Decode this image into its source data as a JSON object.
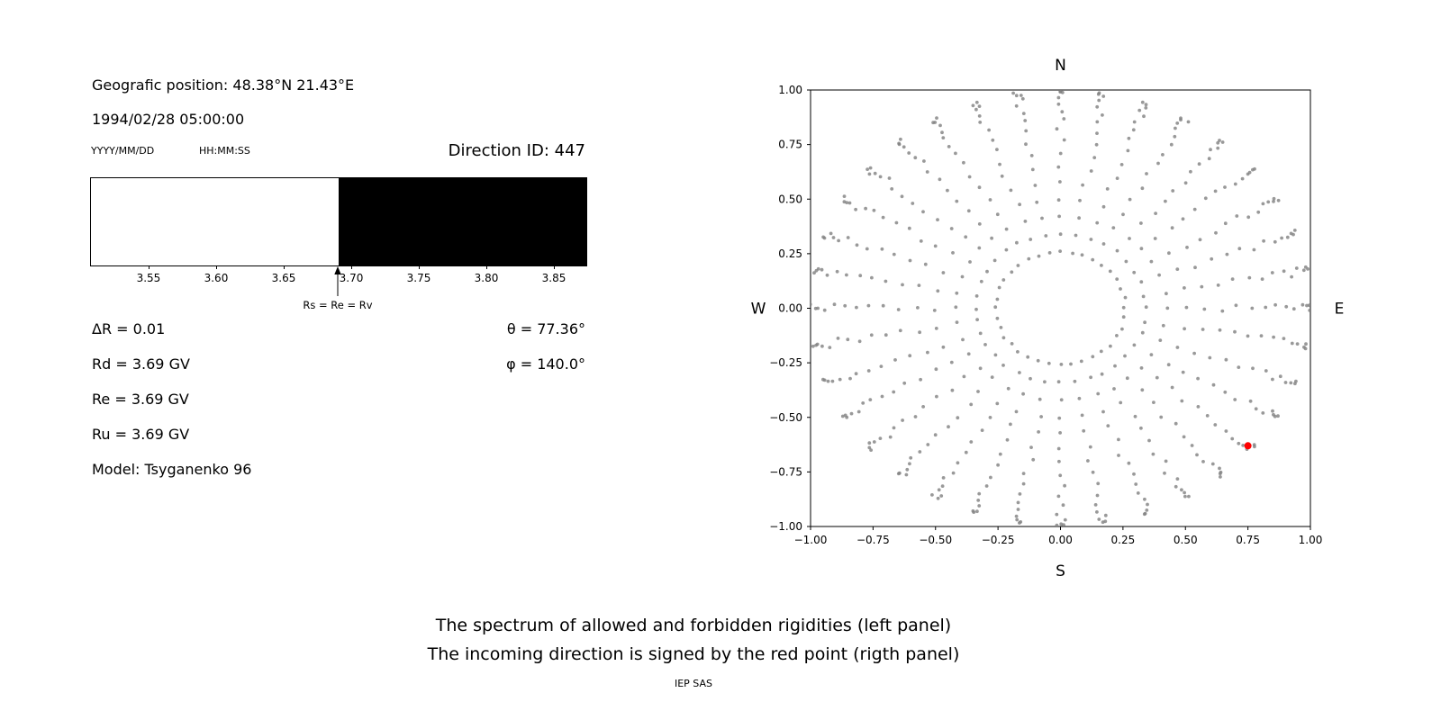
{
  "header": {
    "position": "Geografic position: 48.38°N 21.43°E",
    "datetime": "1994/02/28 05:00:00",
    "date_format": "YYYY/MM/DD",
    "time_format": "HH:MM:SS",
    "direction_id": "Direction ID: 447"
  },
  "parameters": {
    "delta_r": "ΔR = 0.01",
    "rd": "Rd = 3.69 GV",
    "re": "Re = 3.69 GV",
    "ru": "Ru = 3.69 GV",
    "model": "Model: Tsyganenko 96",
    "theta": "θ = 77.36°",
    "phi": "φ = 140.0°"
  },
  "caption": {
    "line1": "The spectrum of allowed and forbidden rigidities (left panel)",
    "line2": "The incoming direction is signed by the red point (rigth panel)",
    "credit": "IEP SAS"
  },
  "chart_data": [
    {
      "name": "rigidity-spectrum",
      "type": "bar",
      "xlim": [
        3.5067,
        3.8733
      ],
      "xtick_values": [
        3.55,
        3.6,
        3.65,
        3.7,
        3.75,
        3.8,
        3.85
      ],
      "xtick_labels": [
        "3.55",
        "3.60",
        "3.65",
        "3.70",
        "3.75",
        "3.80",
        "3.85"
      ],
      "segments": [
        {
          "name": "allowed",
          "from": 3.5067,
          "to": 3.69,
          "color": "#ffffff"
        },
        {
          "name": "forbidden",
          "from": 3.69,
          "to": 3.8733,
          "color": "#000000"
        }
      ],
      "marker": {
        "x": 3.69,
        "label": "Rs = Re = Rv"
      }
    },
    {
      "name": "incoming-direction",
      "type": "scatter",
      "xlim": [
        -1,
        1
      ],
      "ylim": [
        -1,
        1
      ],
      "xtick_values": [
        -1.0,
        -0.75,
        -0.5,
        -0.25,
        0.0,
        0.25,
        0.5,
        0.75,
        1.0
      ],
      "xtick_labels": [
        "−1.00",
        "−0.75",
        "−0.50",
        "−0.25",
        "0.00",
        "0.25",
        "0.50",
        "0.75",
        "1.00"
      ],
      "ytick_values": [
        -1.0,
        -0.75,
        -0.5,
        -0.25,
        0.0,
        0.25,
        0.5,
        0.75,
        1.0
      ],
      "ytick_labels": [
        "−1.00",
        "−0.75",
        "−0.50",
        "−0.25",
        "0.00",
        "0.25",
        "0.50",
        "0.75",
        "1.00"
      ],
      "compass": {
        "north": "N",
        "south": "S",
        "east": "E",
        "west": "W"
      },
      "direction_grid": {
        "azimuth_deg": {
          "start": 0,
          "step": 10,
          "count": 36
        },
        "zenith_deg": {
          "start": 15,
          "step": 5,
          "end": 90
        },
        "projection": "r = sin(zenith)",
        "marker_color": "#808080"
      },
      "red_point": {
        "x": 0.75,
        "y": -0.63,
        "color": "#ff0000",
        "label": "incoming direction"
      }
    }
  ]
}
